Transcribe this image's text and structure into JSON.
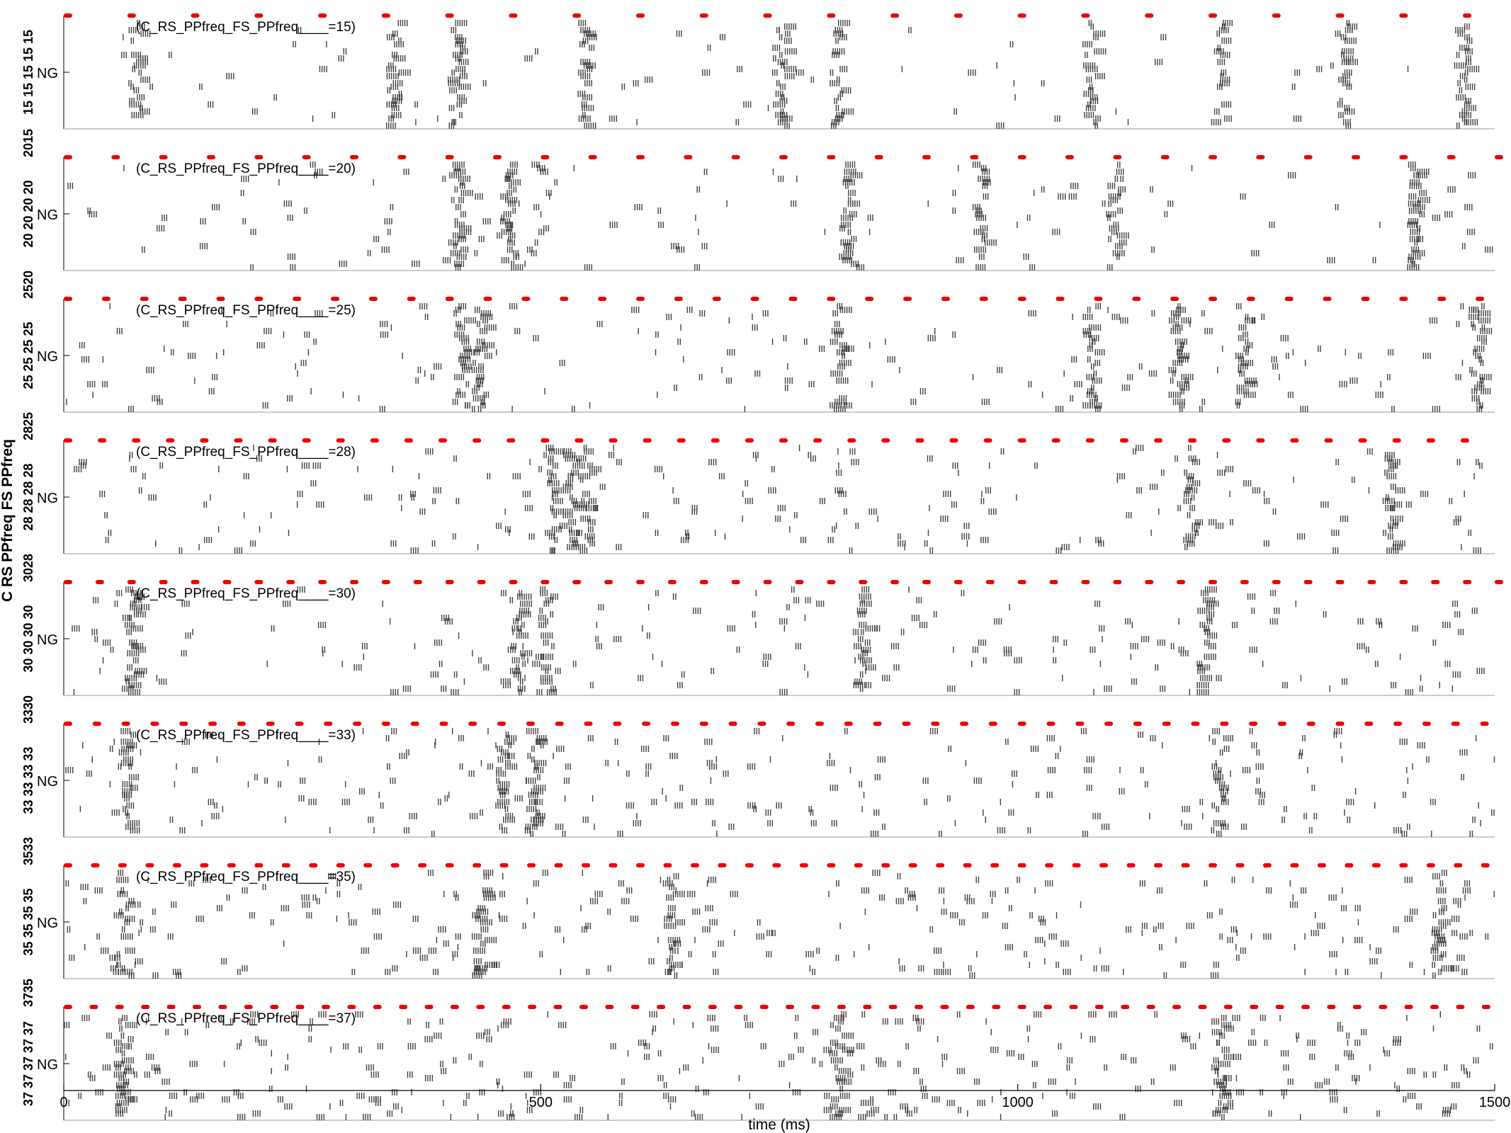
{
  "chart_data": {
    "type": "scatter",
    "xlabel": "time (ms)",
    "ylabel": "C RS PPfreq FS PPfreq",
    "xlim": [
      0,
      1500
    ],
    "x_ticks": [
      0,
      500,
      1000,
      1500
    ],
    "x_tick_labels": [
      "0",
      "500",
      "1000",
      "1500"
    ],
    "panel_ylabel": "NG",
    "input_color": "#ee0000",
    "spike_color": "#404040",
    "panels": [
      {
        "ppfreq": 15,
        "annotation": "(C_RS_PPfreq_FS_PPfreq____=15)",
        "side_label": "15 15 15 15 15",
        "divider_label": "2015",
        "bursts": [
          75,
          345,
          410,
          545,
          750,
          810,
          1075,
          1210,
          1340,
          1465
        ]
      },
      {
        "ppfreq": 20,
        "annotation": "(C_RS_PPfreq_FS_PPfreq____=20)",
        "side_label": "20 20 20 20",
        "divider_label": "2520",
        "bursts": [
          410,
          465,
          820,
          960,
          1100,
          1415
        ]
      },
      {
        "ppfreq": 25,
        "annotation": "(C_RS_PPfreq_FS_PPfreq____=25)",
        "side_label": "25 25 25 25",
        "divider_label": "2825",
        "bursts": [
          415,
          435,
          810,
          1075,
          1165,
          1235,
          1480
        ]
      },
      {
        "ppfreq": 28,
        "annotation": "(C_RS_PPfreq_FS_PPfreq____=28)",
        "side_label": "28 28 28 28",
        "divider_label": "3028",
        "bursts": [
          510,
          530,
          545,
          1180,
          1390
        ]
      },
      {
        "ppfreq": 30,
        "annotation": "(C_RS_PPfreq_FS_PPfreq____=30)",
        "side_label": "30 30 30 30",
        "divider_label": "3330",
        "bursts": [
          70,
          475,
          505,
          835,
          1195
        ]
      },
      {
        "ppfreq": 33,
        "annotation": "(C_RS_PPfreq_FS_PPfreq____=33)",
        "side_label": "33 33 33 33",
        "divider_label": "3533",
        "bursts": [
          65,
          460,
          490,
          1210
        ]
      },
      {
        "ppfreq": 35,
        "annotation": "(C_RS_PPfreq_FS_PPfreq____=35)",
        "side_label": "35 35 35 35",
        "divider_label": "3735",
        "bursts": [
          60,
          435,
          635,
          1440
        ]
      },
      {
        "ppfreq": 37,
        "annotation": "(C_RS_PPfreq_FS_PPfreq____=37)",
        "side_label": "37 37 37 37 37",
        "divider_label": "",
        "bursts": [
          60,
          810,
          1210
        ]
      }
    ]
  }
}
